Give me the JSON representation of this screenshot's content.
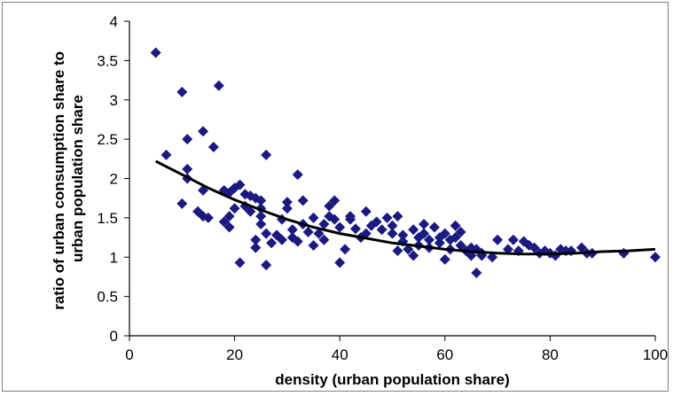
{
  "chart_data": {
    "type": "scatter",
    "title": "",
    "xlabel": "density (urban population share)",
    "ylabel_lines": [
      "ratio of urban consumption share to",
      "urban population share"
    ],
    "xlim": [
      0,
      100
    ],
    "ylim": [
      0,
      4
    ],
    "xticks": [
      "0",
      "20",
      "40",
      "60",
      "80",
      "100"
    ],
    "yticks": [
      "0",
      "0.5",
      "1",
      "1.5",
      "2",
      "2.5",
      "3",
      "3.5",
      "4"
    ],
    "grid": false,
    "legend": "none",
    "colors": {
      "markers": "#1a1a80",
      "trend": "#000000",
      "axes": "#000000"
    },
    "series": [
      {
        "marker": "diamond",
        "points": [
          [
            5,
            3.6
          ],
          [
            7,
            2.3
          ],
          [
            10,
            3.1
          ],
          [
            10,
            1.68
          ],
          [
            11,
            2.5
          ],
          [
            11,
            2.0
          ],
          [
            11,
            2.12
          ],
          [
            13,
            1.58
          ],
          [
            14,
            2.6
          ],
          [
            14,
            1.85
          ],
          [
            14,
            1.52
          ],
          [
            15,
            1.5
          ],
          [
            16,
            2.4
          ],
          [
            17,
            3.18
          ],
          [
            18,
            1.85
          ],
          [
            18,
            1.45
          ],
          [
            19,
            1.38
          ],
          [
            19,
            1.52
          ],
          [
            19,
            1.82
          ],
          [
            20,
            1.62
          ],
          [
            20,
            1.88
          ],
          [
            21,
            0.93
          ],
          [
            21,
            1.92
          ],
          [
            22,
            1.8
          ],
          [
            22,
            1.65
          ],
          [
            23,
            1.58
          ],
          [
            23,
            1.78
          ],
          [
            24,
            1.75
          ],
          [
            24,
            1.22
          ],
          [
            24,
            1.12
          ],
          [
            25,
            1.72
          ],
          [
            25,
            1.62
          ],
          [
            25,
            1.52
          ],
          [
            25,
            1.42
          ],
          [
            26,
            2.3
          ],
          [
            26,
            0.9
          ],
          [
            26,
            1.3
          ],
          [
            27,
            1.18
          ],
          [
            28,
            1.28
          ],
          [
            29,
            1.22
          ],
          [
            29,
            1.48
          ],
          [
            30,
            1.62
          ],
          [
            30,
            1.7
          ],
          [
            31,
            1.25
          ],
          [
            31,
            1.35
          ],
          [
            32,
            2.05
          ],
          [
            32,
            1.2
          ],
          [
            33,
            1.42
          ],
          [
            33,
            1.72
          ],
          [
            34,
            1.32
          ],
          [
            35,
            1.5
          ],
          [
            35,
            1.15
          ],
          [
            36,
            1.3
          ],
          [
            37,
            1.42
          ],
          [
            37,
            1.22
          ],
          [
            38,
            1.52
          ],
          [
            38,
            1.65
          ],
          [
            39,
            1.72
          ],
          [
            39,
            1.48
          ],
          [
            40,
            0.93
          ],
          [
            40,
            1.38
          ],
          [
            41,
            1.1
          ],
          [
            42,
            1.52
          ],
          [
            42,
            1.48
          ],
          [
            43,
            1.36
          ],
          [
            44,
            1.25
          ],
          [
            45,
            1.58
          ],
          [
            45,
            1.3
          ],
          [
            46,
            1.4
          ],
          [
            47,
            1.45
          ],
          [
            48,
            1.35
          ],
          [
            49,
            1.5
          ],
          [
            50,
            1.3
          ],
          [
            50,
            1.4
          ],
          [
            51,
            1.08
          ],
          [
            51,
            1.52
          ],
          [
            52,
            1.2
          ],
          [
            52,
            1.28
          ],
          [
            53,
            1.1
          ],
          [
            54,
            1.35
          ],
          [
            54,
            1.02
          ],
          [
            55,
            1.15
          ],
          [
            55,
            1.25
          ],
          [
            56,
            1.42
          ],
          [
            56,
            1.3
          ],
          [
            57,
            1.12
          ],
          [
            57,
            1.22
          ],
          [
            58,
            1.38
          ],
          [
            59,
            1.25
          ],
          [
            59,
            1.18
          ],
          [
            60,
            0.97
          ],
          [
            60,
            1.3
          ],
          [
            61,
            1.1
          ],
          [
            61,
            1.22
          ],
          [
            62,
            1.25
          ],
          [
            62,
            1.4
          ],
          [
            63,
            1.15
          ],
          [
            63,
            1.32
          ],
          [
            64,
            1.08
          ],
          [
            65,
            1.02
          ],
          [
            65,
            1.12
          ],
          [
            66,
            0.8
          ],
          [
            66,
            1.1
          ],
          [
            67,
            1.05
          ],
          [
            67,
            1.02
          ],
          [
            69,
            1.0
          ],
          [
            70,
            1.22
          ],
          [
            72,
            1.1
          ],
          [
            73,
            1.22
          ],
          [
            74,
            1.08
          ],
          [
            75,
            1.2
          ],
          [
            76,
            1.15
          ],
          [
            77,
            1.12
          ],
          [
            78,
            1.05
          ],
          [
            79,
            1.08
          ],
          [
            80,
            1.05
          ],
          [
            81,
            1.02
          ],
          [
            82,
            1.1
          ],
          [
            83,
            1.08
          ],
          [
            84,
            1.08
          ],
          [
            86,
            1.12
          ],
          [
            87,
            1.05
          ],
          [
            88,
            1.05
          ],
          [
            94,
            1.05
          ],
          [
            100,
            1.0
          ]
        ]
      }
    ],
    "trendline": [
      [
        5,
        2.22
      ],
      [
        10,
        2.05
      ],
      [
        15,
        1.88
      ],
      [
        20,
        1.73
      ],
      [
        25,
        1.6
      ],
      [
        30,
        1.48
      ],
      [
        35,
        1.38
      ],
      [
        40,
        1.3
      ],
      [
        45,
        1.24
      ],
      [
        50,
        1.18
      ],
      [
        55,
        1.14
      ],
      [
        60,
        1.1
      ],
      [
        65,
        1.07
      ],
      [
        70,
        1.05
      ],
      [
        75,
        1.04
      ],
      [
        80,
        1.04
      ],
      [
        85,
        1.05
      ],
      [
        90,
        1.07
      ],
      [
        95,
        1.08
      ],
      [
        100,
        1.1
      ]
    ]
  }
}
